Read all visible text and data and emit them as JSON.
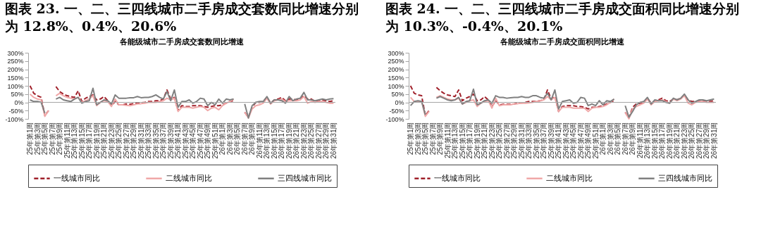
{
  "chart_data": [
    {
      "type": "line",
      "title": "图表 23. 一、二、三四线城市二手房成交套数同比增速分别为 12.8%、0.4%、20.6%",
      "subtitle": "各能级城市二手房成交套数同比增速",
      "categories": [
        "25年第1周",
        null,
        "25年第3周",
        null,
        "25年第5周",
        null,
        "25年第7周",
        null,
        "25年第9周",
        null,
        "25年第11周",
        null,
        "25年第13周",
        null,
        "25年第15周",
        null,
        "25年第17周",
        null,
        "25年第19周",
        null,
        "25年第21周",
        null,
        "25年第23周",
        null,
        "25年第25周",
        null,
        "25年第27周",
        null,
        "25年第29周",
        null,
        "25年第31周",
        null,
        "25年第33周",
        null,
        "25年第35周",
        null,
        "25年第37周",
        null,
        "25年第39周",
        null,
        "25年第41周",
        null,
        "25年第43周",
        null,
        "25年第45周",
        null,
        "25年第47周",
        null,
        "25年第49周",
        null,
        "25年第51周",
        null,
        "26年第1周",
        null,
        "26年第3周",
        null,
        "26年第5周",
        null,
        "26年第7周",
        null,
        "26年第9周",
        null,
        "26年第11周",
        null,
        "26年第13周",
        null,
        "26年第15周",
        null,
        "26年第17周",
        null,
        "26年第19周",
        null,
        "26年第21周",
        null,
        "26年第23周",
        null,
        "26年第25周",
        null,
        "26年第27周",
        null,
        "26年第29周",
        null,
        "26年第31周"
      ],
      "series": [
        {
          "name": "一线城市同比",
          "color": "#a0202a",
          "line_style": "dashed",
          "values": [
            100,
            55,
            40,
            30,
            -80,
            -50,
            null,
            95,
            65,
            50,
            40,
            35,
            30,
            70,
            5,
            25,
            35,
            45,
            15,
            20,
            35,
            10,
            -20,
            5,
            -15,
            -15,
            -10,
            -12,
            -8,
            -5,
            -3,
            0,
            5,
            5,
            10,
            10,
            20,
            75,
            20,
            30,
            -50,
            -20,
            -25,
            -25,
            -20,
            -20,
            -20,
            -25,
            -30,
            -25,
            -20,
            -20,
            -15,
            -5,
            5,
            10,
            null,
            null,
            -60,
            -90,
            -30,
            0,
            0,
            5,
            30,
            -5,
            15,
            20,
            30,
            10,
            20,
            20,
            15,
            20,
            40,
            20,
            20,
            5,
            10,
            15,
            10,
            5,
            10
          ]
        },
        {
          "name": "二线城市同比",
          "color": "#f0a8a8",
          "line_style": "solid",
          "values": [
            50,
            30,
            20,
            15,
            -85,
            -50,
            null,
            40,
            55,
            40,
            30,
            25,
            20,
            30,
            0,
            10,
            20,
            40,
            -20,
            0,
            10,
            5,
            -25,
            20,
            -15,
            -15,
            -18,
            -20,
            -15,
            -10,
            -8,
            -5,
            0,
            0,
            0,
            5,
            10,
            25,
            15,
            25,
            -55,
            -30,
            -30,
            -30,
            -35,
            -30,
            -25,
            -30,
            -50,
            -35,
            -30,
            -45,
            -20,
            -5,
            5,
            20,
            null,
            null,
            -60,
            -95,
            -40,
            -20,
            -15,
            -5,
            25,
            -10,
            10,
            15,
            20,
            5,
            10,
            10,
            10,
            15,
            35,
            -5,
            5,
            0,
            5,
            5,
            0,
            -5,
            -5
          ]
        },
        {
          "name": "三四线城市同比",
          "color": "#808080",
          "line_style": "solid",
          "values": [
            15,
            5,
            5,
            0,
            -65,
            null,
            null,
            20,
            30,
            15,
            10,
            5,
            20,
            30,
            -5,
            5,
            10,
            85,
            -15,
            0,
            15,
            10,
            -10,
            45,
            25,
            25,
            25,
            28,
            28,
            35,
            28,
            30,
            30,
            35,
            45,
            30,
            20,
            65,
            10,
            75,
            -30,
            5,
            5,
            15,
            -5,
            5,
            25,
            20,
            -20,
            0,
            -15,
            20,
            -5,
            20,
            15,
            20,
            null,
            null,
            -10,
            -95,
            -20,
            0,
            5,
            5,
            35,
            -5,
            15,
            15,
            10,
            -5,
            35,
            10,
            20,
            25,
            60,
            15,
            15,
            10,
            15,
            20,
            15,
            20,
            22
          ]
        }
      ],
      "ylim": [
        -100,
        300
      ],
      "yticks": [
        {
          "value": -100,
          "label": "-100%"
        },
        {
          "value": -50,
          "label": "-50%"
        },
        {
          "value": 0,
          "label": "0%"
        },
        {
          "value": 50,
          "label": "50%"
        },
        {
          "value": 100,
          "label": "100%"
        },
        {
          "value": 150,
          "label": "150%"
        },
        {
          "value": 200,
          "label": "200%"
        },
        {
          "value": 250,
          "label": "250%"
        },
        {
          "value": 300,
          "label": "300%"
        }
      ],
      "ref_lines": [
        {
          "axis": "y",
          "value": 0,
          "color": "#a6a6a6"
        }
      ],
      "grid": false,
      "legend": "bottom"
    },
    {
      "type": "line",
      "title": "图表 24. 一、二、三四线城市二手房成交面积同比增速分别为 10.3%、-0.4%、20.1%",
      "subtitle": "各能级城市二手房成交面积同比增速",
      "categories": [
        "25年第1周",
        null,
        "25年第3周",
        null,
        "25年第5周",
        null,
        "25年第7周",
        null,
        "25年第9周",
        null,
        "25年第11周",
        null,
        "25年第13周",
        null,
        "25年第15周",
        null,
        "25年第17周",
        null,
        "25年第19周",
        null,
        "25年第21周",
        null,
        "25年第23周",
        null,
        "25年第25周",
        null,
        "25年第27周",
        null,
        "25年第29周",
        null,
        "25年第31周",
        null,
        "25年第33周",
        null,
        "25年第35周",
        null,
        "25年第37周",
        null,
        "25年第39周",
        null,
        "25年第41周",
        null,
        "25年第43周",
        null,
        "25年第45周",
        null,
        "25年第47周",
        null,
        "25年第49周",
        null,
        "25年第51周",
        null,
        "26年第1周",
        null,
        "26年第3周",
        null,
        "26年第5周",
        null,
        "26年第7周",
        null,
        "26年第9周",
        null,
        "26年第11周",
        null,
        "26年第13周",
        null,
        "26年第15周",
        null,
        "26年第17周",
        null,
        "26年第19周",
        null,
        "26年第21周",
        null,
        "26年第23周",
        null,
        "26年第25周",
        null,
        "26年第27周",
        null,
        "26年第29周",
        null,
        "26年第31周"
      ],
      "series": [
        {
          "name": "一线城市同比",
          "color": "#a0202a",
          "line_style": "dashed",
          "values": [
            100,
            55,
            45,
            40,
            -80,
            -50,
            null,
            90,
            70,
            55,
            45,
            40,
            35,
            75,
            10,
            25,
            35,
            50,
            10,
            15,
            35,
            15,
            -25,
            10,
            -15,
            -12,
            -12,
            -12,
            -10,
            -5,
            -3,
            0,
            5,
            5,
            5,
            10,
            15,
            75,
            20,
            35,
            -55,
            -25,
            -20,
            -20,
            -20,
            -25,
            -25,
            -30,
            -40,
            -30,
            -30,
            -25,
            -20,
            -10,
            0,
            10,
            null,
            null,
            -60,
            -95,
            -30,
            -10,
            -5,
            0,
            25,
            -5,
            10,
            15,
            25,
            10,
            5,
            20,
            15,
            25,
            45,
            15,
            5,
            5,
            10,
            10,
            5,
            5,
            10
          ]
        },
        {
          "name": "二线城市同比",
          "color": "#f0a8a8",
          "line_style": "solid",
          "values": [
            30,
            5,
            5,
            5,
            -85,
            -55,
            null,
            30,
            40,
            30,
            20,
            15,
            15,
            25,
            -10,
            0,
            10,
            15,
            -25,
            -5,
            5,
            10,
            -35,
            25,
            -20,
            -15,
            -15,
            -15,
            -10,
            -8,
            -5,
            -5,
            -3,
            0,
            5,
            10,
            15,
            35,
            15,
            30,
            -55,
            -30,
            -30,
            -30,
            -35,
            -35,
            -35,
            -35,
            -55,
            -35,
            -30,
            -30,
            -25,
            -15,
            0,
            20,
            null,
            null,
            -60,
            -100,
            -40,
            -25,
            -15,
            -5,
            20,
            -15,
            5,
            10,
            15,
            5,
            -5,
            20,
            10,
            20,
            40,
            -5,
            -15,
            0,
            5,
            5,
            0,
            0,
            0
          ]
        },
        {
          "name": "三四线城市同比",
          "color": "#808080",
          "line_style": "solid",
          "values": [
            -20,
            5,
            10,
            5,
            -75,
            null,
            null,
            25,
            35,
            25,
            15,
            10,
            15,
            30,
            -10,
            5,
            10,
            80,
            -15,
            -5,
            10,
            15,
            -5,
            40,
            30,
            30,
            25,
            28,
            30,
            30,
            35,
            30,
            30,
            40,
            40,
            30,
            25,
            55,
            15,
            75,
            -40,
            5,
            10,
            15,
            -5,
            0,
            30,
            25,
            -20,
            -10,
            -20,
            10,
            -15,
            10,
            5,
            20,
            null,
            null,
            -20,
            -90,
            -55,
            -15,
            0,
            5,
            30,
            -10,
            15,
            10,
            10,
            0,
            -5,
            25,
            15,
            25,
            50,
            15,
            -5,
            5,
            15,
            15,
            10,
            15,
            20
          ]
        }
      ],
      "ylim": [
        -100,
        300
      ],
      "yticks": [
        {
          "value": -100,
          "label": "-100%"
        },
        {
          "value": -50,
          "label": "-50%"
        },
        {
          "value": 0,
          "label": "0%"
        },
        {
          "value": 50,
          "label": "50%"
        },
        {
          "value": 100,
          "label": "100%"
        },
        {
          "value": 150,
          "label": "150%"
        },
        {
          "value": 200,
          "label": "200%"
        },
        {
          "value": 250,
          "label": "250%"
        },
        {
          "value": 300,
          "label": "300%"
        }
      ],
      "ref_lines": [
        {
          "axis": "y",
          "value": 0,
          "color": "#a6a6a6"
        }
      ],
      "grid": false,
      "legend": "bottom"
    }
  ]
}
